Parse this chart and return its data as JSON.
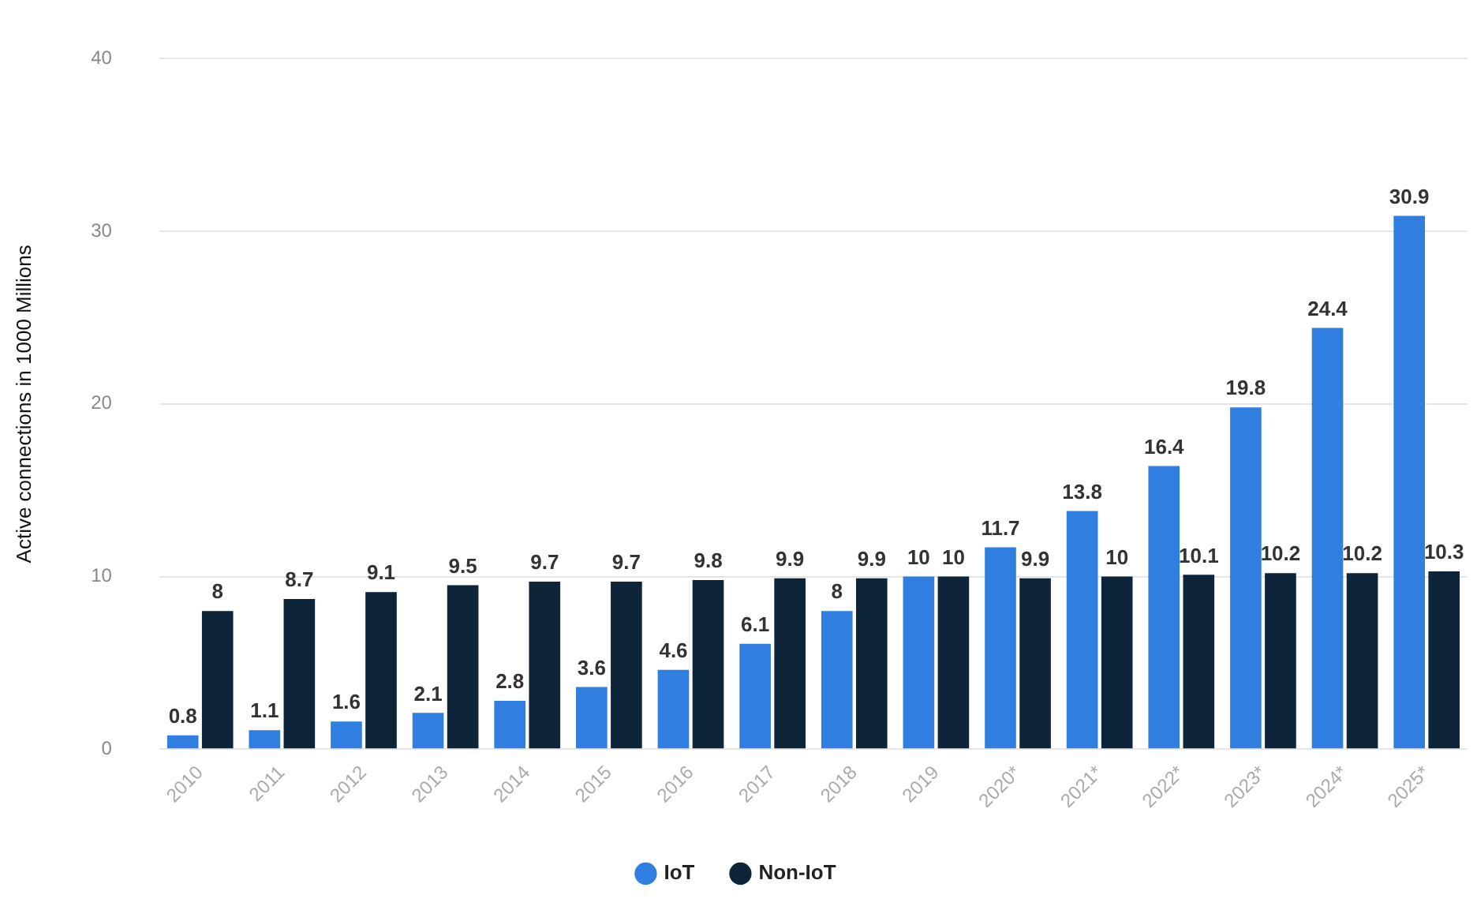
{
  "chart_data": {
    "type": "bar",
    "ylabel": "Active connections in 1000 Millions",
    "categories": [
      "2010",
      "2011",
      "2012",
      "2013",
      "2014",
      "2015",
      "2016",
      "2017",
      "2018",
      "2019",
      "2020*",
      "2021*",
      "2022*",
      "2023*",
      "2024*",
      "2025*"
    ],
    "series": [
      {
        "name": "IoT",
        "color": "#2f7ee0",
        "values": [
          0.8,
          1.1,
          1.6,
          2.1,
          2.8,
          3.6,
          4.6,
          6.1,
          8,
          10,
          11.7,
          13.8,
          16.4,
          19.8,
          24.4,
          30.9
        ]
      },
      {
        "name": "Non-IoT",
        "color": "#0e2438",
        "values": [
          8,
          8.7,
          9.1,
          9.5,
          9.7,
          9.7,
          9.8,
          9.9,
          9.9,
          10,
          9.9,
          10,
          10.1,
          10.2,
          10.2,
          10.3
        ]
      }
    ],
    "ylim": [
      0,
      40
    ],
    "yticks": [
      0,
      10,
      20,
      30,
      40
    ],
    "grid": "y",
    "legend": "bottom",
    "data_labels": true
  }
}
